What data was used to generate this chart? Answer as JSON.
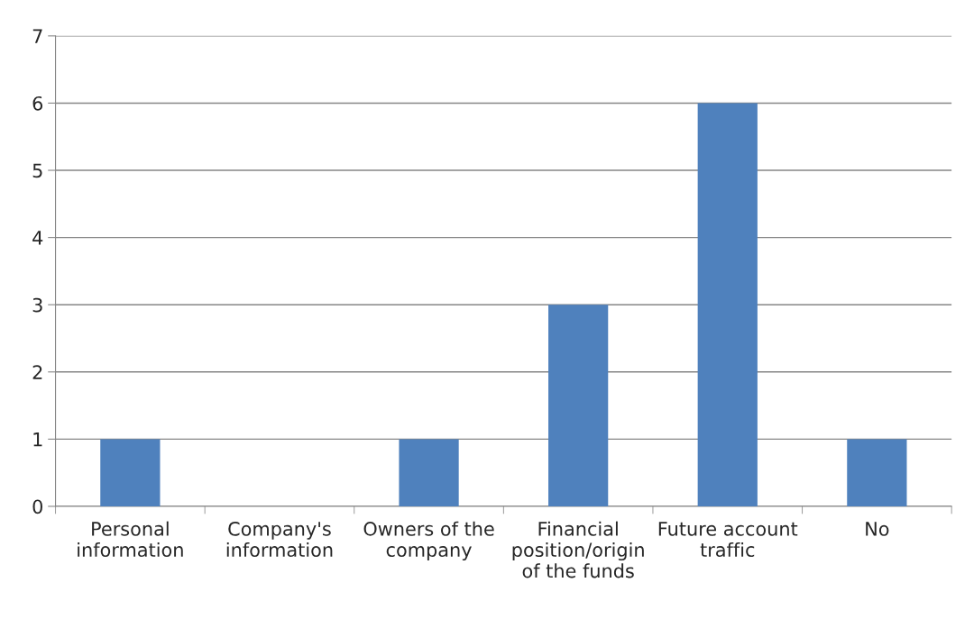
{
  "chart_data": {
    "type": "bar",
    "categories": [
      "Personal information",
      "Company's information",
      "Owners of the company",
      "Financial position/origin of the funds",
      "Future account traffic",
      "No"
    ],
    "values": [
      1,
      0,
      1,
      3,
      6,
      1
    ],
    "color": "#4f81bd",
    "ylim": [
      0,
      7
    ],
    "yticks": [
      0,
      1,
      2,
      3,
      4,
      5,
      6,
      7
    ],
    "grid": "y",
    "legend": false
  }
}
